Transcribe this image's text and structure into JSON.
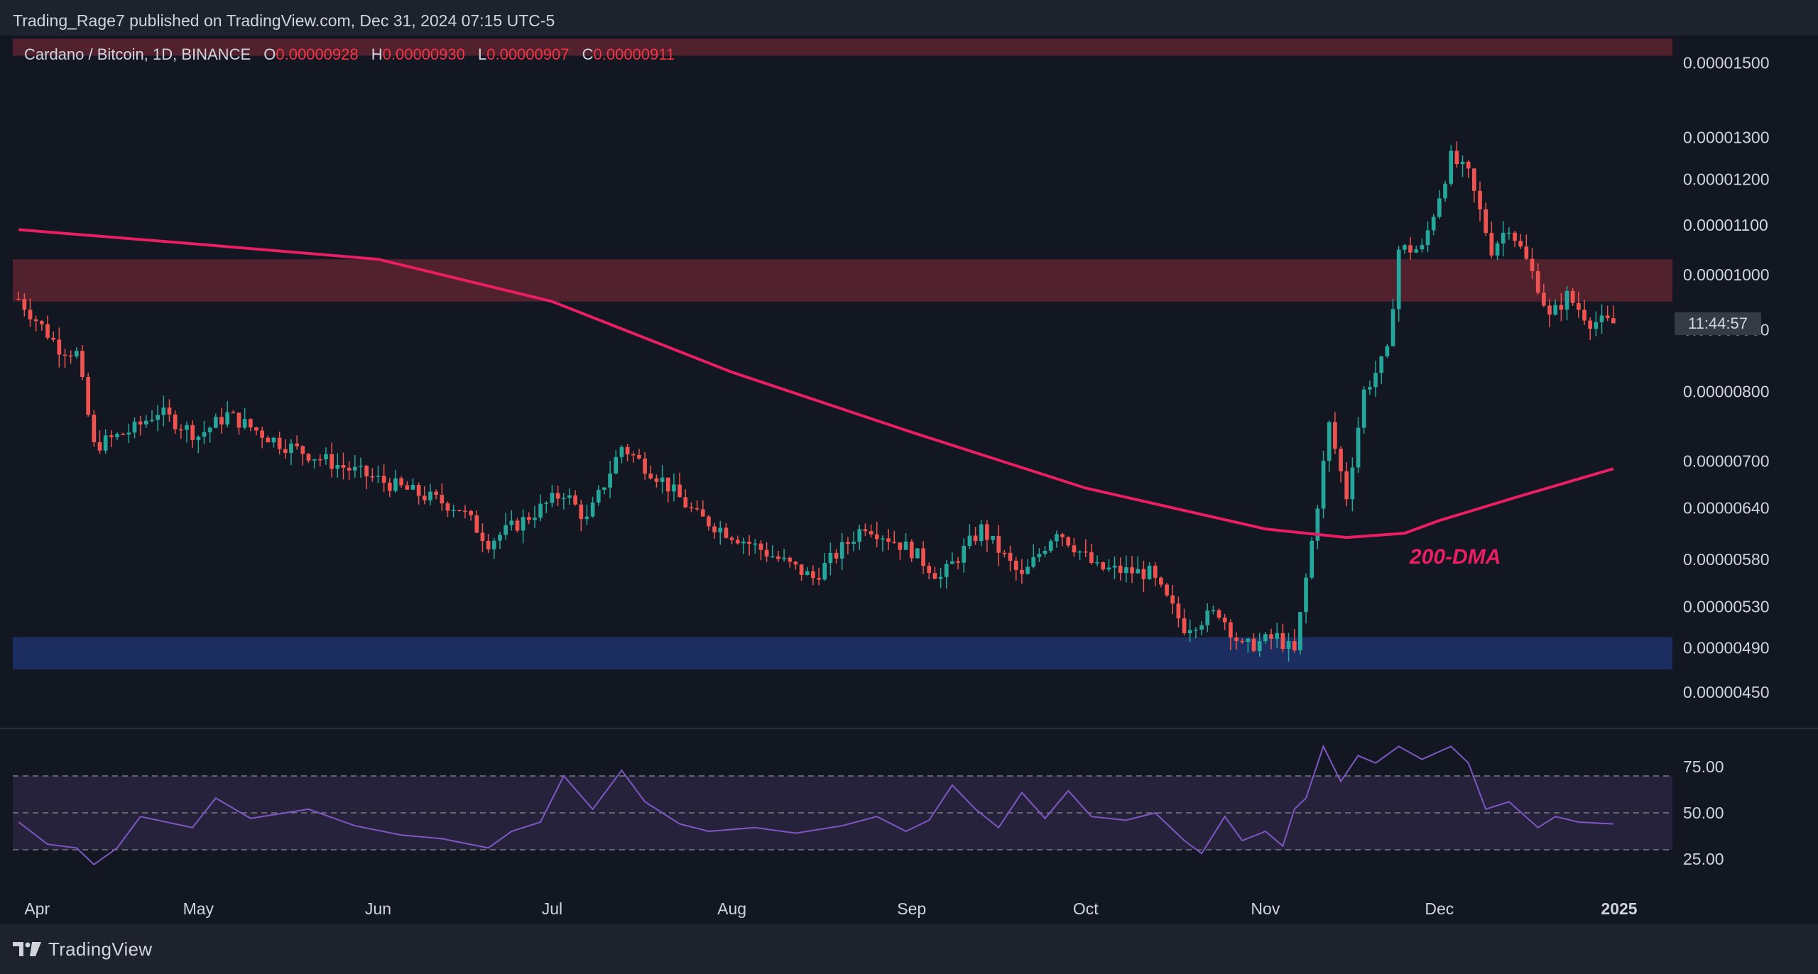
{
  "header": {
    "published": "Trading_Rage7 published on TradingView.com, Dec 31, 2024 07:15 UTC-5"
  },
  "legend": {
    "symbol": "Cardano / Bitcoin, 1D, BINANCE",
    "o_label": "O",
    "o_value": "0.00000928",
    "h_label": "H",
    "h_value": "0.00000930",
    "l_label": "L",
    "l_value": "0.00000907",
    "c_label": "C",
    "c_value": "0.00000911"
  },
  "countdown": "11:44:57",
  "annotation": "200-DMA",
  "footer": {
    "brand": "TradingView"
  },
  "colors": {
    "background": "#131722",
    "panel": "#1e222d",
    "up": "#26a69a",
    "down": "#ef5350",
    "ma": "#e91e63",
    "resistance_zone": "#5a2230",
    "support_zone": "#1e3166",
    "rsi_line": "#7e57c2",
    "rsi_band": "#2a2440"
  },
  "chart_data": [
    {
      "type": "candlestick",
      "title": "Cardano / Bitcoin, 1D, BINANCE",
      "scale": "log",
      "ylim": [
        4.2e-06,
        1.58e-05
      ],
      "y_ticks": [
        "0.00001500",
        "0.00001300",
        "0.00001200",
        "0.00001100",
        "0.00001000",
        "0.00000900",
        "0.00000800",
        "0.00000700",
        "0.00000640",
        "0.00000580",
        "0.00000530",
        "0.00000490",
        "0.00000450"
      ],
      "y_tick_values": [
        1.5e-05,
        1.3e-05,
        1.2e-05,
        1.1e-05,
        1e-05,
        9e-06,
        8e-06,
        7e-06,
        6.4e-06,
        5.8e-06,
        5.3e-06,
        4.9e-06,
        4.5e-06
      ],
      "x_ticks": [
        "Apr",
        "May",
        "Jun",
        "Jul",
        "Aug",
        "Sep",
        "Oct",
        "Nov",
        "Dec",
        "2025"
      ],
      "x_tick_dates": [
        "2024-04-01",
        "2024-05-01",
        "2024-06-01",
        "2024-07-01",
        "2024-08-01",
        "2024-09-01",
        "2024-10-01",
        "2024-11-01",
        "2024-12-01",
        "2025-01-01"
      ],
      "x_range": [
        "2024-03-30",
        "2025-01-31"
      ],
      "zones": [
        {
          "kind": "resistance",
          "low": 1.52e-05,
          "high": 1.57e-05
        },
        {
          "kind": "resistance",
          "low": 9.5e-06,
          "high": 1.03e-05
        },
        {
          "kind": "support",
          "low": 4.7e-06,
          "high": 5e-06
        }
      ],
      "close_path": [
        {
          "date": "2024-03-31",
          "close": 9.55e-06
        },
        {
          "date": "2024-04-07",
          "close": 8.7e-06
        },
        {
          "date": "2024-04-10",
          "close": 8.6e-06
        },
        {
          "date": "2024-04-13",
          "close": 7.2e-06
        },
        {
          "date": "2024-04-20",
          "close": 7.45e-06
        },
        {
          "date": "2024-04-24",
          "close": 7.7e-06
        },
        {
          "date": "2024-05-01",
          "close": 7.35e-06
        },
        {
          "date": "2024-05-06",
          "close": 7.65e-06
        },
        {
          "date": "2024-05-15",
          "close": 7.25e-06
        },
        {
          "date": "2024-05-25",
          "close": 6.95e-06
        },
        {
          "date": "2024-06-05",
          "close": 6.65e-06
        },
        {
          "date": "2024-06-15",
          "close": 6.4e-06
        },
        {
          "date": "2024-06-20",
          "close": 6e-06
        },
        {
          "date": "2024-06-26",
          "close": 6.25e-06
        },
        {
          "date": "2024-07-03",
          "close": 6.6e-06
        },
        {
          "date": "2024-07-07",
          "close": 6.25e-06
        },
        {
          "date": "2024-07-13",
          "close": 7.2e-06
        },
        {
          "date": "2024-07-20",
          "close": 6.75e-06
        },
        {
          "date": "2024-07-26",
          "close": 6.3e-06
        },
        {
          "date": "2024-08-05",
          "close": 5.95e-06
        },
        {
          "date": "2024-08-15",
          "close": 5.6e-06
        },
        {
          "date": "2024-08-24",
          "close": 6.2e-06
        },
        {
          "date": "2024-09-01",
          "close": 5.9e-06
        },
        {
          "date": "2024-09-06",
          "close": 5.6e-06
        },
        {
          "date": "2024-09-13",
          "close": 6.15e-06
        },
        {
          "date": "2024-09-20",
          "close": 5.6e-06
        },
        {
          "date": "2024-09-26",
          "close": 6.15e-06
        },
        {
          "date": "2024-10-03",
          "close": 5.7e-06
        },
        {
          "date": "2024-10-12",
          "close": 5.65e-06
        },
        {
          "date": "2024-10-18",
          "close": 5.1e-06
        },
        {
          "date": "2024-10-24",
          "close": 5.25e-06
        },
        {
          "date": "2024-10-28",
          "close": 4.9e-06
        },
        {
          "date": "2024-11-03",
          "close": 5e-06
        },
        {
          "date": "2024-11-06",
          "close": 4.85e-06
        },
        {
          "date": "2024-11-09",
          "close": 6e-06
        },
        {
          "date": "2024-11-12",
          "close": 7.5e-06
        },
        {
          "date": "2024-11-15",
          "close": 6.55e-06
        },
        {
          "date": "2024-11-18",
          "close": 8e-06
        },
        {
          "date": "2024-11-22",
          "close": 8.6e-06
        },
        {
          "date": "2024-11-24",
          "close": 1.05e-05
        },
        {
          "date": "2024-11-28",
          "close": 1.05e-05
        },
        {
          "date": "2024-12-03",
          "close": 1.25e-05
        },
        {
          "date": "2024-12-06",
          "close": 1.21e-05
        },
        {
          "date": "2024-12-10",
          "close": 1.05e-05
        },
        {
          "date": "2024-12-13",
          "close": 1.1e-05
        },
        {
          "date": "2024-12-18",
          "close": 9.8e-06
        },
        {
          "date": "2024-12-20",
          "close": 9.2e-06
        },
        {
          "date": "2024-12-23",
          "close": 9.6e-06
        },
        {
          "date": "2024-12-27",
          "close": 9.15e-06
        },
        {
          "date": "2024-12-31",
          "close": 9.11e-06
        }
      ],
      "ma_200": [
        {
          "date": "2024-03-31",
          "value": 1.09e-05
        },
        {
          "date": "2024-05-01",
          "value": 1.06e-05
        },
        {
          "date": "2024-06-01",
          "value": 1.03e-05
        },
        {
          "date": "2024-07-01",
          "value": 9.5e-06
        },
        {
          "date": "2024-08-01",
          "value": 8.3e-06
        },
        {
          "date": "2024-09-01",
          "value": 7.4e-06
        },
        {
          "date": "2024-10-01",
          "value": 6.65e-06
        },
        {
          "date": "2024-11-01",
          "value": 6.15e-06
        },
        {
          "date": "2024-11-15",
          "value": 6.05e-06
        },
        {
          "date": "2024-11-25",
          "value": 6.1e-06
        },
        {
          "date": "2024-12-01",
          "value": 6.25e-06
        },
        {
          "date": "2024-12-15",
          "value": 6.55e-06
        },
        {
          "date": "2024-12-31",
          "value": 6.9e-06
        }
      ],
      "last_price": 9.11e-06
    },
    {
      "type": "line",
      "title": "RSI",
      "ylim": [
        5,
        95
      ],
      "y_ticks": [
        "75.00",
        "50.00",
        "25.00"
      ],
      "y_tick_values": [
        75,
        50,
        25
      ],
      "band": [
        30,
        70
      ],
      "x": [
        "2024-03-31",
        "2024-04-05",
        "2024-04-10",
        "2024-04-13",
        "2024-04-17",
        "2024-04-21",
        "2024-04-30",
        "2024-05-04",
        "2024-05-10",
        "2024-05-20",
        "2024-05-28",
        "2024-06-05",
        "2024-06-12",
        "2024-06-20",
        "2024-06-24",
        "2024-06-29",
        "2024-07-03",
        "2024-07-08",
        "2024-07-13",
        "2024-07-17",
        "2024-07-23",
        "2024-07-28",
        "2024-08-05",
        "2024-08-12",
        "2024-08-20",
        "2024-08-26",
        "2024-08-31",
        "2024-09-04",
        "2024-09-08",
        "2024-09-12",
        "2024-09-16",
        "2024-09-20",
        "2024-09-24",
        "2024-09-28",
        "2024-10-02",
        "2024-10-08",
        "2024-10-13",
        "2024-10-18",
        "2024-10-21",
        "2024-10-25",
        "2024-10-28",
        "2024-11-01",
        "2024-11-04",
        "2024-11-06",
        "2024-11-08",
        "2024-11-11",
        "2024-11-14",
        "2024-11-17",
        "2024-11-20",
        "2024-11-24",
        "2024-11-28",
        "2024-12-03",
        "2024-12-06",
        "2024-12-09",
        "2024-12-13",
        "2024-12-18",
        "2024-12-21",
        "2024-12-25",
        "2024-12-31"
      ],
      "values": [
        45,
        33,
        31,
        22,
        31,
        48,
        42,
        58,
        47,
        52,
        43,
        38,
        36,
        31,
        40,
        45,
        70,
        52,
        73,
        56,
        44,
        40,
        42,
        39,
        43,
        48,
        40,
        46,
        65,
        52,
        42,
        61,
        47,
        62,
        48,
        46,
        50,
        35,
        28,
        48,
        35,
        40,
        32,
        52,
        58,
        86,
        67,
        81,
        77,
        86,
        79,
        86,
        77,
        52,
        56,
        42,
        48,
        45,
        44
      ]
    }
  ]
}
